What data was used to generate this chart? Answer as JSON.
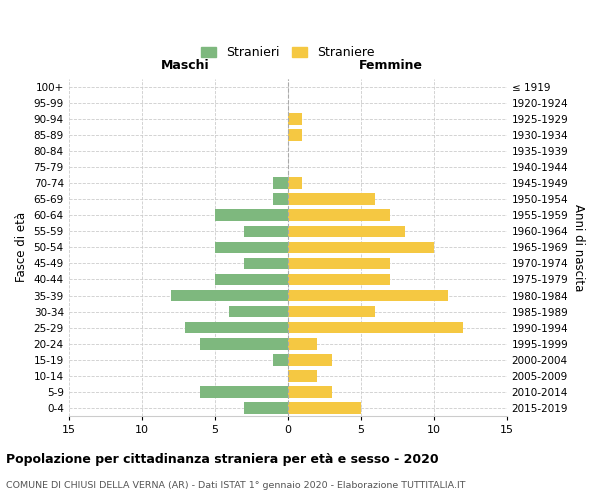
{
  "age_groups": [
    "0-4",
    "5-9",
    "10-14",
    "15-19",
    "20-24",
    "25-29",
    "30-34",
    "35-39",
    "40-44",
    "45-49",
    "50-54",
    "55-59",
    "60-64",
    "65-69",
    "70-74",
    "75-79",
    "80-84",
    "85-89",
    "90-94",
    "95-99",
    "100+"
  ],
  "birth_years": [
    "2015-2019",
    "2010-2014",
    "2005-2009",
    "2000-2004",
    "1995-1999",
    "1990-1994",
    "1985-1989",
    "1980-1984",
    "1975-1979",
    "1970-1974",
    "1965-1969",
    "1960-1964",
    "1955-1959",
    "1950-1954",
    "1945-1949",
    "1940-1944",
    "1935-1939",
    "1930-1934",
    "1925-1929",
    "1920-1924",
    "≤ 1919"
  ],
  "males": [
    3,
    6,
    0,
    1,
    6,
    7,
    4,
    8,
    5,
    3,
    5,
    3,
    5,
    1,
    1,
    0,
    0,
    0,
    0,
    0,
    0
  ],
  "females": [
    5,
    3,
    2,
    3,
    2,
    12,
    6,
    11,
    7,
    7,
    10,
    8,
    7,
    6,
    1,
    0,
    0,
    1,
    1,
    0,
    0
  ],
  "male_color": "#7EB87E",
  "female_color": "#F5C842",
  "background_color": "#FFFFFF",
  "grid_color": "#CCCCCC",
  "title": "Popolazione per cittadinanza straniera per età e sesso - 2020",
  "subtitle": "COMUNE DI CHIUSI DELLA VERNA (AR) - Dati ISTAT 1° gennaio 2020 - Elaborazione TUTTITALIA.IT",
  "xlabel_left": "Maschi",
  "xlabel_right": "Femmine",
  "ylabel_left": "Fasce di età",
  "ylabel_right": "Anni di nascita",
  "legend_male": "Stranieri",
  "legend_female": "Straniere",
  "xlim": 15,
  "bar_height": 0.72
}
